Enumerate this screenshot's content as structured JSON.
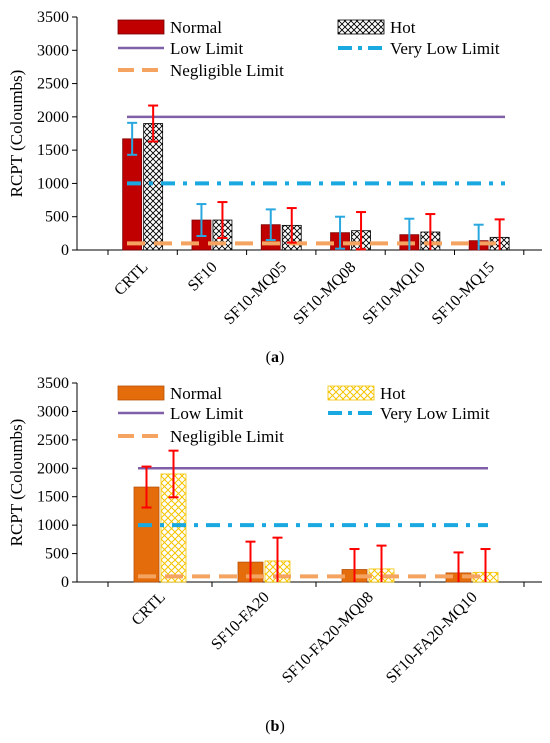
{
  "chart_data": [
    {
      "type": "bar",
      "caption_letter": "a",
      "ylabel": "RCPT (Coloumbs)",
      "ylim": [
        0,
        3500
      ],
      "yticks": [
        0,
        500,
        1000,
        1500,
        2000,
        2500,
        3000,
        3500
      ],
      "categories": [
        "CRTL",
        "SF10",
        "SF10-MQ05",
        "SF10-MQ08",
        "SF10-MQ10",
        "SF10-MQ15"
      ],
      "series": [
        {
          "name": "Normal",
          "style": "solid",
          "color": "#c00000",
          "values": [
            1670,
            450,
            380,
            260,
            230,
            140
          ],
          "errors": [
            240,
            240,
            230,
            240,
            240,
            240
          ]
        },
        {
          "name": "Hot",
          "style": "crosshatch",
          "color": "#000000",
          "values": [
            1900,
            450,
            370,
            290,
            270,
            190
          ],
          "errors": [
            270,
            270,
            260,
            280,
            270,
            270
          ]
        }
      ],
      "reference_lines": [
        {
          "name": "Low Limit",
          "value": 2000,
          "style": "solid",
          "color": "#7f5fa8"
        },
        {
          "name": "Very Low Limit",
          "value": 1000,
          "style": "dashdot",
          "color": "#19a9e0"
        },
        {
          "name": "Negligible Limit",
          "value": 100,
          "style": "dashed",
          "color": "#f4a460"
        }
      ],
      "error_colors": {
        "Normal": "#29a7df",
        "Hot": "#ff0000"
      },
      "legend": "top"
    },
    {
      "type": "bar",
      "caption_letter": "b",
      "ylabel": "RCPT (Coloumbs)",
      "ylim": [
        0,
        3500
      ],
      "yticks": [
        0,
        500,
        1000,
        1500,
        2000,
        2500,
        3000,
        3500
      ],
      "categories": [
        "CRTL",
        "SF10-FA20",
        "SF10-FA20-MQ08",
        "SF10-FA20-MQ10"
      ],
      "series": [
        {
          "name": "Normal",
          "style": "solid",
          "color": "#e46c0a",
          "values": [
            1670,
            350,
            220,
            160
          ],
          "errors": [
            360,
            360,
            360,
            360
          ]
        },
        {
          "name": "Hot",
          "style": "crosshatch",
          "color": "#f5c400",
          "values": [
            1900,
            370,
            230,
            170
          ],
          "errors": [
            410,
            410,
            410,
            410
          ]
        }
      ],
      "reference_lines": [
        {
          "name": "Low Limit",
          "value": 2000,
          "style": "solid",
          "color": "#7f5fa8"
        },
        {
          "name": "Very Low Limit",
          "value": 1000,
          "style": "dashdot",
          "color": "#19a9e0"
        },
        {
          "name": "Negligible Limit",
          "value": 100,
          "style": "dashed",
          "color": "#f4a460"
        }
      ],
      "error_colors": {
        "Normal": "#ff0000",
        "Hot": "#ff0000"
      },
      "legend": "top"
    }
  ]
}
